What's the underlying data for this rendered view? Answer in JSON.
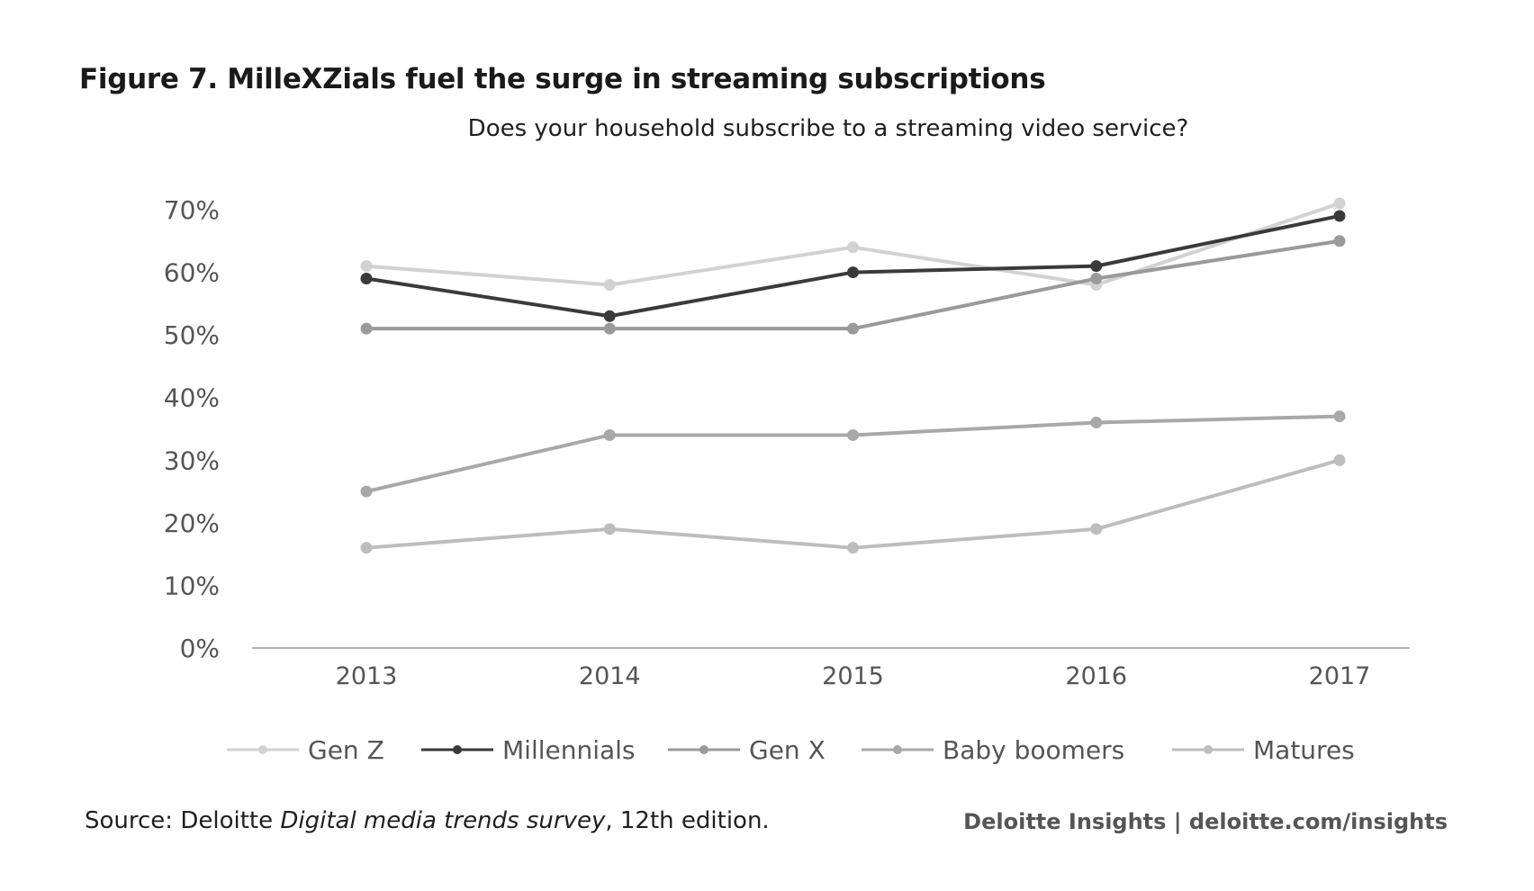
{
  "figure": {
    "title": "Figure 7. MilleXZials fuel the surge in streaming subscriptions",
    "subtitle": "Does your household subscribe to a streaming video service?"
  },
  "footer": {
    "source_prefix": "Source: Deloitte ",
    "source_title": "Digital media trends survey",
    "source_suffix": ", 12th edition.",
    "brand": "Deloitte Insights | deloitte.com/insights"
  },
  "chart_data": {
    "type": "line",
    "title": "",
    "xlabel": "",
    "ylabel": "",
    "categories": [
      "2013",
      "2014",
      "2015",
      "2016",
      "2017"
    ],
    "ylim": [
      0,
      70
    ],
    "yticks": [
      0,
      10,
      20,
      30,
      40,
      50,
      60,
      70
    ],
    "ytick_labels": [
      "0%",
      "10%",
      "20%",
      "30%",
      "40%",
      "50%",
      "60%",
      "70%"
    ],
    "grid": false,
    "legend_position": "bottom",
    "series": [
      {
        "name": "Gen Z",
        "color": "#d2d2d2",
        "values": [
          61,
          58,
          64,
          58,
          71
        ]
      },
      {
        "name": "Millennials",
        "color": "#3a3a3a",
        "values": [
          59,
          53,
          60,
          61,
          69
        ]
      },
      {
        "name": "Gen X",
        "color": "#9a9a9a",
        "values": [
          51,
          51,
          51,
          59,
          65
        ]
      },
      {
        "name": "Baby boomers",
        "color": "#a8a8a8",
        "values": [
          25,
          34,
          34,
          36,
          37
        ]
      },
      {
        "name": "Matures",
        "color": "#bdbdbd",
        "values": [
          16,
          19,
          16,
          19,
          30
        ]
      }
    ]
  }
}
